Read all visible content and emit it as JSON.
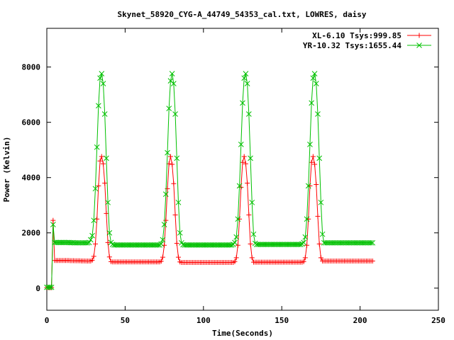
{
  "chart_data": {
    "type": "line",
    "title": "Skynet_58920_CYG-A_44749_54353_cal.txt, LOWRES, daisy",
    "xlabel": "Time(Seconds)",
    "ylabel": "Power (Kelvin)",
    "xlim": [
      0,
      250
    ],
    "ylim": [
      -800,
      9400
    ],
    "xticks": [
      0,
      50,
      100,
      150,
      200,
      250
    ],
    "yticks": [
      0,
      2000,
      4000,
      6000,
      8000
    ],
    "grid": false,
    "legend_position": "top-right",
    "sample_spacing_s": 1,
    "series": [
      {
        "name": "XL-6.10 Tsys:999.85",
        "color": "#ff0000",
        "marker": "plus",
        "x_start": 0,
        "values": [
          20,
          20,
          20,
          20,
          2450,
          1000,
          1000,
          1000,
          1000,
          1000,
          1000,
          1000,
          1000,
          1000,
          1000,
          995,
          995,
          995,
          990,
          990,
          990,
          990,
          985,
          985,
          985,
          980,
          980,
          980,
          980,
          1010,
          1150,
          1600,
          2500,
          3700,
          4600,
          4760,
          4500,
          3800,
          2700,
          1650,
          1130,
          960,
          950,
          950,
          950,
          950,
          950,
          950,
          950,
          950,
          950,
          950,
          950,
          950,
          950,
          950,
          950,
          950,
          950,
          950,
          950,
          950,
          950,
          950,
          950,
          950,
          950,
          950,
          950,
          950,
          950,
          950,
          950,
          970,
          1120,
          1550,
          2450,
          3600,
          4500,
          4760,
          4480,
          3780,
          2650,
          1620,
          1120,
          950,
          930,
          930,
          930,
          930,
          930,
          930,
          930,
          930,
          930,
          930,
          930,
          930,
          930,
          930,
          930,
          930,
          930,
          930,
          930,
          930,
          930,
          930,
          930,
          930,
          930,
          930,
          930,
          930,
          930,
          930,
          930,
          930,
          930,
          930,
          960,
          1100,
          1550,
          2500,
          3650,
          4550,
          4760,
          4500,
          3800,
          2650,
          1600,
          1100,
          940,
          940,
          940,
          940,
          940,
          940,
          940,
          940,
          940,
          940,
          940,
          940,
          940,
          940,
          940,
          940,
          940,
          940,
          940,
          940,
          940,
          940,
          940,
          940,
          940,
          940,
          940,
          940,
          940,
          940,
          940,
          940,
          960,
          1100,
          1550,
          2500,
          3700,
          4550,
          4760,
          4480,
          3750,
          2600,
          1600,
          1100,
          980,
          980,
          980,
          980,
          980,
          980,
          980,
          980,
          980,
          980,
          980,
          980,
          980,
          980,
          980,
          980,
          980,
          980,
          980,
          980,
          980,
          980,
          980,
          980,
          980,
          980,
          980,
          980,
          980,
          980,
          980,
          980,
          980
        ]
      },
      {
        "name": "YR-10.32 Tsys:1655.44",
        "color": "#00c000",
        "marker": "cross",
        "x_start": 0,
        "values": [
          30,
          30,
          30,
          30,
          2300,
          1650,
          1650,
          1650,
          1650,
          1650,
          1650,
          1650,
          1650,
          1650,
          1650,
          1645,
          1645,
          1645,
          1640,
          1640,
          1640,
          1640,
          1640,
          1640,
          1640,
          1640,
          1640,
          1650,
          1750,
          1900,
          2450,
          3600,
          5100,
          6600,
          7600,
          7760,
          7400,
          6300,
          4700,
          3100,
          2000,
          1650,
          1580,
          1560,
          1560,
          1560,
          1560,
          1560,
          1560,
          1560,
          1560,
          1560,
          1560,
          1560,
          1560,
          1560,
          1560,
          1560,
          1560,
          1560,
          1560,
          1560,
          1560,
          1560,
          1560,
          1560,
          1560,
          1560,
          1560,
          1560,
          1560,
          1560,
          1560,
          1600,
          1750,
          2300,
          3400,
          4900,
          6500,
          7500,
          7760,
          7400,
          6300,
          4700,
          3100,
          2000,
          1640,
          1570,
          1560,
          1560,
          1560,
          1560,
          1560,
          1560,
          1560,
          1560,
          1560,
          1560,
          1560,
          1560,
          1560,
          1560,
          1560,
          1560,
          1560,
          1560,
          1560,
          1560,
          1560,
          1560,
          1560,
          1560,
          1560,
          1560,
          1560,
          1560,
          1560,
          1560,
          1560,
          1580,
          1650,
          1850,
          2500,
          3700,
          5200,
          6700,
          7600,
          7760,
          7400,
          6300,
          4700,
          3100,
          1950,
          1620,
          1580,
          1580,
          1580,
          1580,
          1580,
          1580,
          1580,
          1580,
          1580,
          1580,
          1580,
          1580,
          1580,
          1580,
          1580,
          1580,
          1580,
          1580,
          1580,
          1580,
          1580,
          1580,
          1580,
          1580,
          1580,
          1580,
          1580,
          1580,
          1580,
          1600,
          1650,
          1850,
          2500,
          3700,
          5200,
          6700,
          7600,
          7760,
          7400,
          6300,
          4700,
          3100,
          1950,
          1640,
          1640,
          1640,
          1640,
          1640,
          1640,
          1640,
          1640,
          1640,
          1640,
          1640,
          1640,
          1640,
          1640,
          1640,
          1640,
          1640,
          1640,
          1640,
          1640,
          1640,
          1640,
          1640,
          1640,
          1640,
          1640,
          1640,
          1640,
          1640,
          1640,
          1640,
          1640
        ]
      }
    ]
  }
}
